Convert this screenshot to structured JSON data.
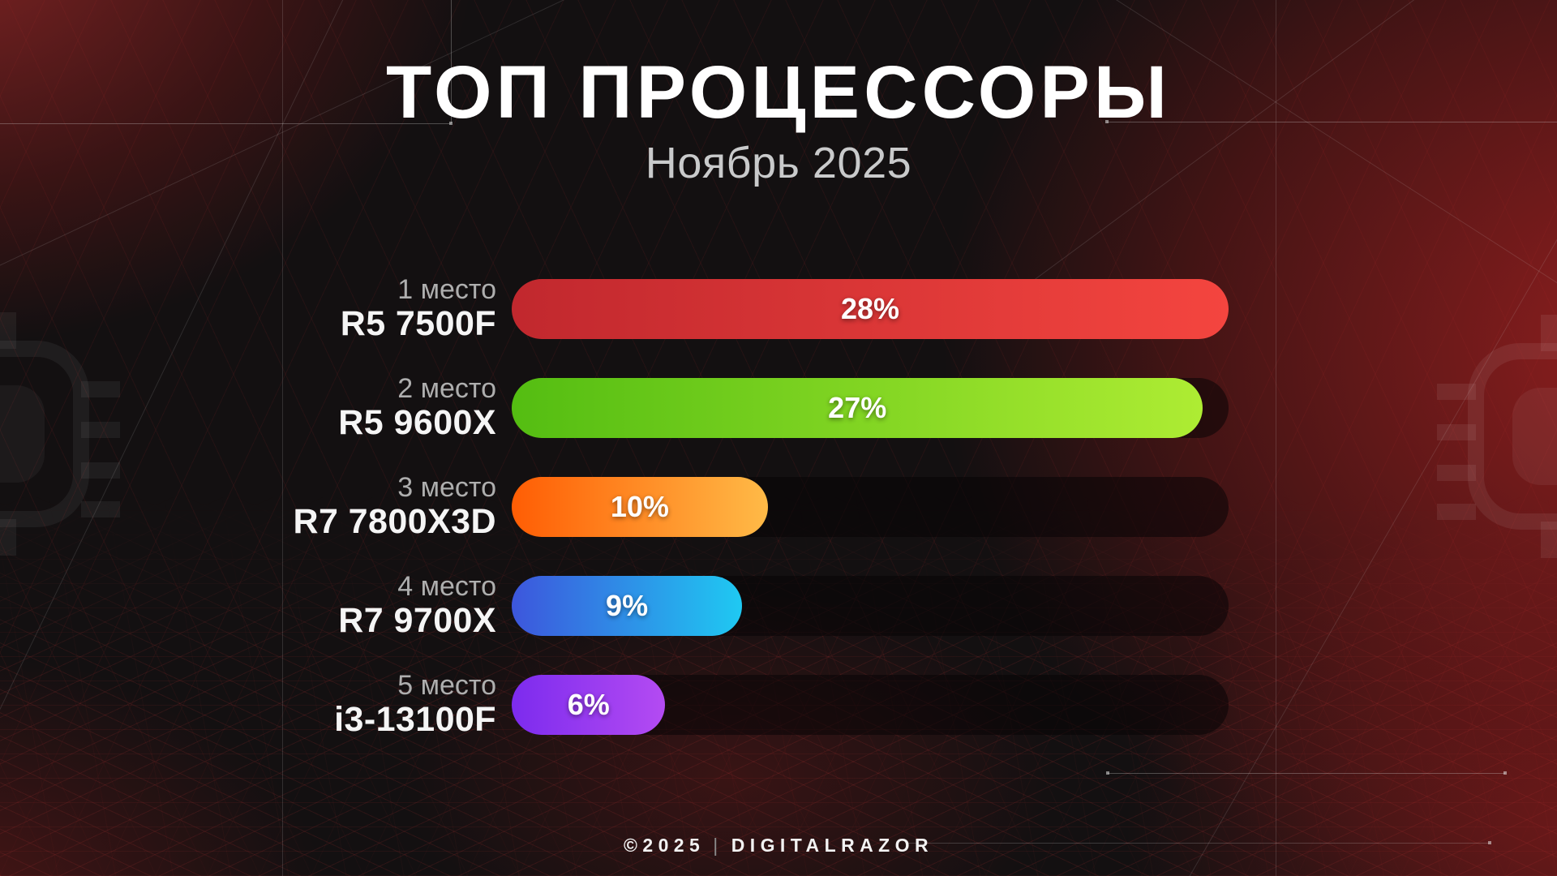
{
  "page": {
    "title": "ТОП ПРОЦЕССОРЫ",
    "subtitle": "Ноябрь 2025"
  },
  "footer": {
    "copyright": "©2025",
    "divider": "|",
    "brand": "DIGITALRAZOR"
  },
  "theme": {
    "background": "#131011",
    "red_glow": "#7c1d1d",
    "mesh_line": "#a93232",
    "track": "rgba(8,4,5,0.55)",
    "title_color": "#ffffff",
    "subtitle_color": "#c9cacb",
    "rank_color": "#aeaeae"
  },
  "chart_data": {
    "type": "bar",
    "orientation": "horizontal",
    "title": "ТОП ПРОЦЕССОРЫ",
    "subtitle": "Ноябрь 2025",
    "unit": "%",
    "max_value": 28,
    "categories": [
      "R5 7500F",
      "R5 9600X",
      "R7 7800X3D",
      "R7 9700X",
      "i3-13100F"
    ],
    "values": [
      28,
      27,
      10,
      9,
      6
    ],
    "legend": "none",
    "grid": "off",
    "rows": [
      {
        "rank_label": "1 место",
        "name": "R5 7500F",
        "value": 28,
        "value_label": "28%",
        "color_start": "#c1282e",
        "color_end": "#f4453f"
      },
      {
        "rank_label": "2 место",
        "name": "R5 9600X",
        "value": 27,
        "value_label": "27%",
        "color_start": "#54bd12",
        "color_end": "#aeec33"
      },
      {
        "rank_label": "3 место",
        "name": "R7 7800X3D",
        "value": 10,
        "value_label": "10%",
        "color_start": "#ff5d04",
        "color_end": "#ffba47"
      },
      {
        "rank_label": "4 место",
        "name": "R7 9700X",
        "value": 9,
        "value_label": "9%",
        "color_start": "#3d56dc",
        "color_end": "#1fc9f2"
      },
      {
        "rank_label": "5 место",
        "name": "i3-13100F",
        "value": 6,
        "value_label": "6%",
        "color_start": "#7c2bee",
        "color_end": "#b44bf2"
      }
    ]
  }
}
